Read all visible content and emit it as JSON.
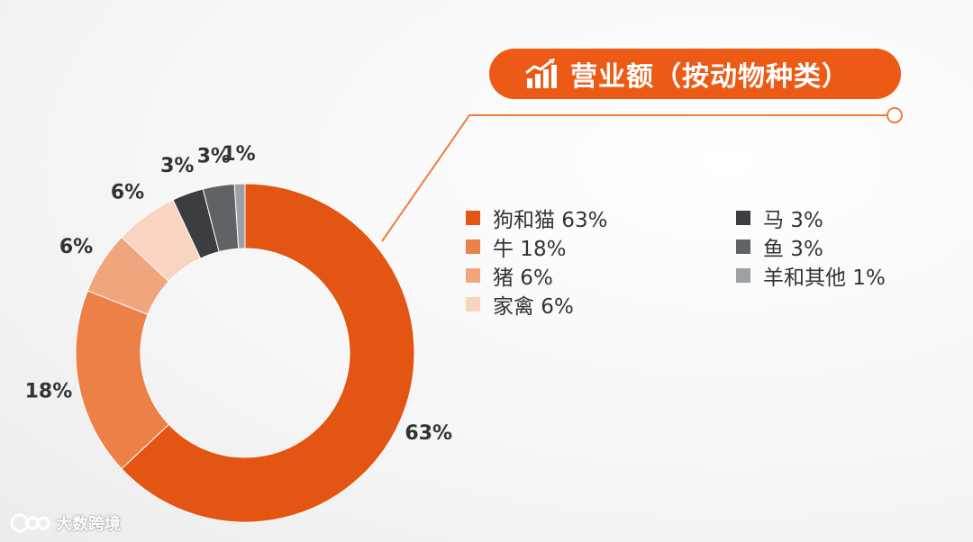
{
  "title": "营业额（按动物种类）",
  "colors": {
    "accent": "#ec5a15",
    "leader_line": "#f07c3c"
  },
  "chart_data": {
    "type": "donut",
    "title": "营业额（按动物种类）",
    "unit": "%",
    "series": [
      {
        "name": "狗和猫",
        "value": 63,
        "label": "63%",
        "color": "#e35512"
      },
      {
        "name": "牛",
        "value": 18,
        "label": "18%",
        "color": "#ec8148"
      },
      {
        "name": "猪",
        "value": 6,
        "label": "6%",
        "color": "#f0a57c"
      },
      {
        "name": "家禽",
        "value": 6,
        "label": "6%",
        "color": "#f8d4c1"
      },
      {
        "name": "马",
        "value": 3,
        "label": "3%",
        "color": "#3b3d40"
      },
      {
        "name": "鱼",
        "value": 3,
        "label": "3%",
        "color": "#606366"
      },
      {
        "name": "羊和其他",
        "value": 1,
        "label": "1%",
        "color": "#9da0a4"
      }
    ],
    "legend": {
      "left": [
        {
          "text": "狗和猫 63%",
          "color": "#e35512"
        },
        {
          "text": "牛 18%",
          "color": "#ec8148"
        },
        {
          "text": "猪 6%",
          "color": "#f0a57c"
        },
        {
          "text": "家禽 6%",
          "color": "#f8d4c1"
        }
      ],
      "right": [
        {
          "text": "马 3%",
          "color": "#3b3d40"
        },
        {
          "text": "鱼 3%",
          "color": "#606366"
        },
        {
          "text": "羊和其他 1%",
          "color": "#9da0a4"
        }
      ]
    }
  },
  "watermark": {
    "text": "大数跨境",
    "icon": "brand-logo-icon"
  }
}
